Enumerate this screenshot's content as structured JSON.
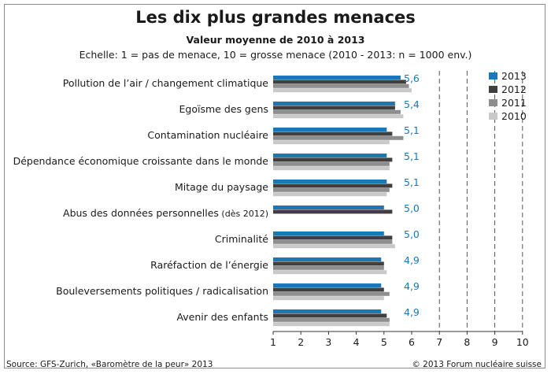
{
  "title": "Les dix plus grandes menaces",
  "subtitle": "Valeur moyenne de 2010 à 2013",
  "scale_note": "Echelle: 1 = pas de menace, 10 = grosse menace (2010 - 2013: n = 1000 env.)",
  "source": "Source: GFS-Zurich, «Baromètre de la peur» 2013",
  "copyright": "© 2013 Forum nucléaire suisse",
  "colors": {
    "2013": "#1b78b4",
    "2012": "#3f3f3f",
    "2011": "#8e8e8e",
    "2010": "#c9c9c9",
    "value_label": "#1b78b4",
    "grid": "#555555"
  },
  "legend": [
    {
      "label": "2013",
      "color": "#1b78b4"
    },
    {
      "label": "2012",
      "color": "#3f3f3f"
    },
    {
      "label": "2011",
      "color": "#8e8e8e"
    },
    {
      "label": "2010",
      "color": "#c9c9c9"
    }
  ],
  "chart_data": {
    "type": "bar",
    "orientation": "horizontal",
    "title": "Les dix plus grandes menaces",
    "subtitle": "Valeur moyenne de 2010 à 2013",
    "categories": [
      "Pollution de l’air / changement climatique",
      "Egoïsme des gens",
      "Contamination nucléaire",
      "Dépendance économique croissante dans le monde",
      "Mitage du paysage",
      "Abus des données personnelles",
      "Criminalité",
      "Raréfaction de l’énergie",
      "Bouleversements politiques / radicalisation",
      "Avenir des enfants"
    ],
    "category_notes": [
      "",
      "",
      "",
      "",
      "",
      "(dès 2012)",
      "",
      "",
      "",
      ""
    ],
    "value_labels": [
      "5,6",
      "5,4",
      "5,1",
      "5,1",
      "5,1",
      "5,0",
      "5,0",
      "4,9",
      "4,9",
      "4,9"
    ],
    "series": [
      {
        "name": "2013",
        "values": [
          5.6,
          5.4,
          5.1,
          5.1,
          5.1,
          5.0,
          5.0,
          4.9,
          4.9,
          4.9
        ]
      },
      {
        "name": "2012",
        "values": [
          5.8,
          5.4,
          5.3,
          5.3,
          5.3,
          5.3,
          5.3,
          5.0,
          5.0,
          5.1
        ]
      },
      {
        "name": "2011",
        "values": [
          5.9,
          5.6,
          5.7,
          5.2,
          5.2,
          null,
          5.3,
          5.0,
          5.2,
          5.2
        ]
      },
      {
        "name": "2010",
        "values": [
          6.0,
          5.7,
          5.2,
          5.2,
          5.1,
          null,
          5.4,
          5.1,
          5.0,
          5.2
        ]
      }
    ],
    "xlim": [
      1,
      10
    ],
    "x_ticks": [
      "1",
      "2",
      "3",
      "4",
      "5",
      "6",
      "7",
      "8",
      "9",
      "10"
    ],
    "grid": "vertical dashed from 7 to 10",
    "legend_position": "top-right"
  }
}
